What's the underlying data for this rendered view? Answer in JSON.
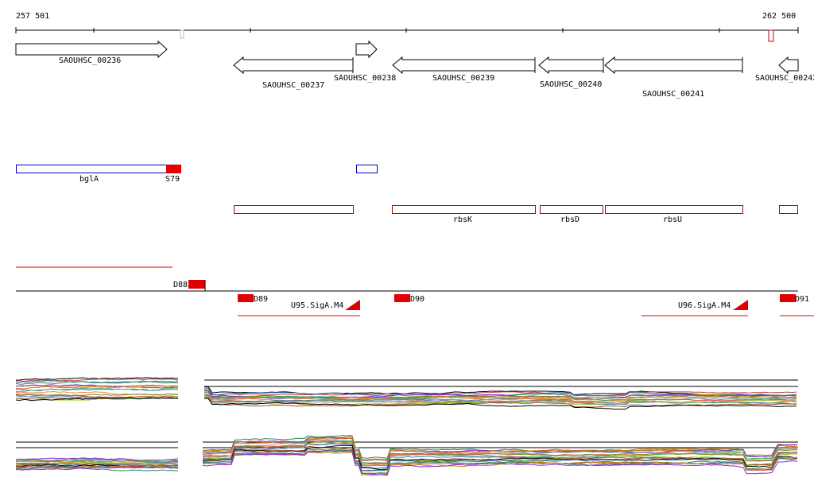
{
  "coords": {
    "start": "257 501",
    "end": "262 500"
  },
  "genes": [
    {
      "label": "SAOUHSC_00236",
      "strand": "+"
    },
    {
      "label": "SAOUHSC_00237",
      "strand": "-"
    },
    {
      "label": "SAOUHSC_00238",
      "strand": "+"
    },
    {
      "label": "SAOUHSC_00239",
      "strand": "-"
    },
    {
      "label": "SAOUHSC_00240",
      "strand": "-"
    },
    {
      "label": "SAOUHSC_00241",
      "strand": "-"
    },
    {
      "label": "SAOUHSC_00242",
      "strand": "-"
    }
  ],
  "annotations": {
    "blue": [
      {
        "label": "bglA"
      },
      {
        "label": ""
      }
    ],
    "red_top": [
      {
        "label": "S79"
      }
    ],
    "red": [
      {
        "label": ""
      },
      {
        "label": "rbsK"
      },
      {
        "label": "rbsD"
      },
      {
        "label": "rbsU"
      },
      {
        "label": ""
      }
    ]
  },
  "segments": [
    {
      "label": "D88"
    },
    {
      "label": "D89"
    },
    {
      "label": "D90"
    },
    {
      "label": "D91"
    }
  ],
  "promoters": [
    {
      "label": "U95.SigA.M4"
    },
    {
      "label": "U96.SigA.M4"
    }
  ],
  "colors": {
    "gene_outline": "#000000",
    "blue": "#0000c0",
    "red": "#e00000",
    "red_outline": "#c00000"
  }
}
